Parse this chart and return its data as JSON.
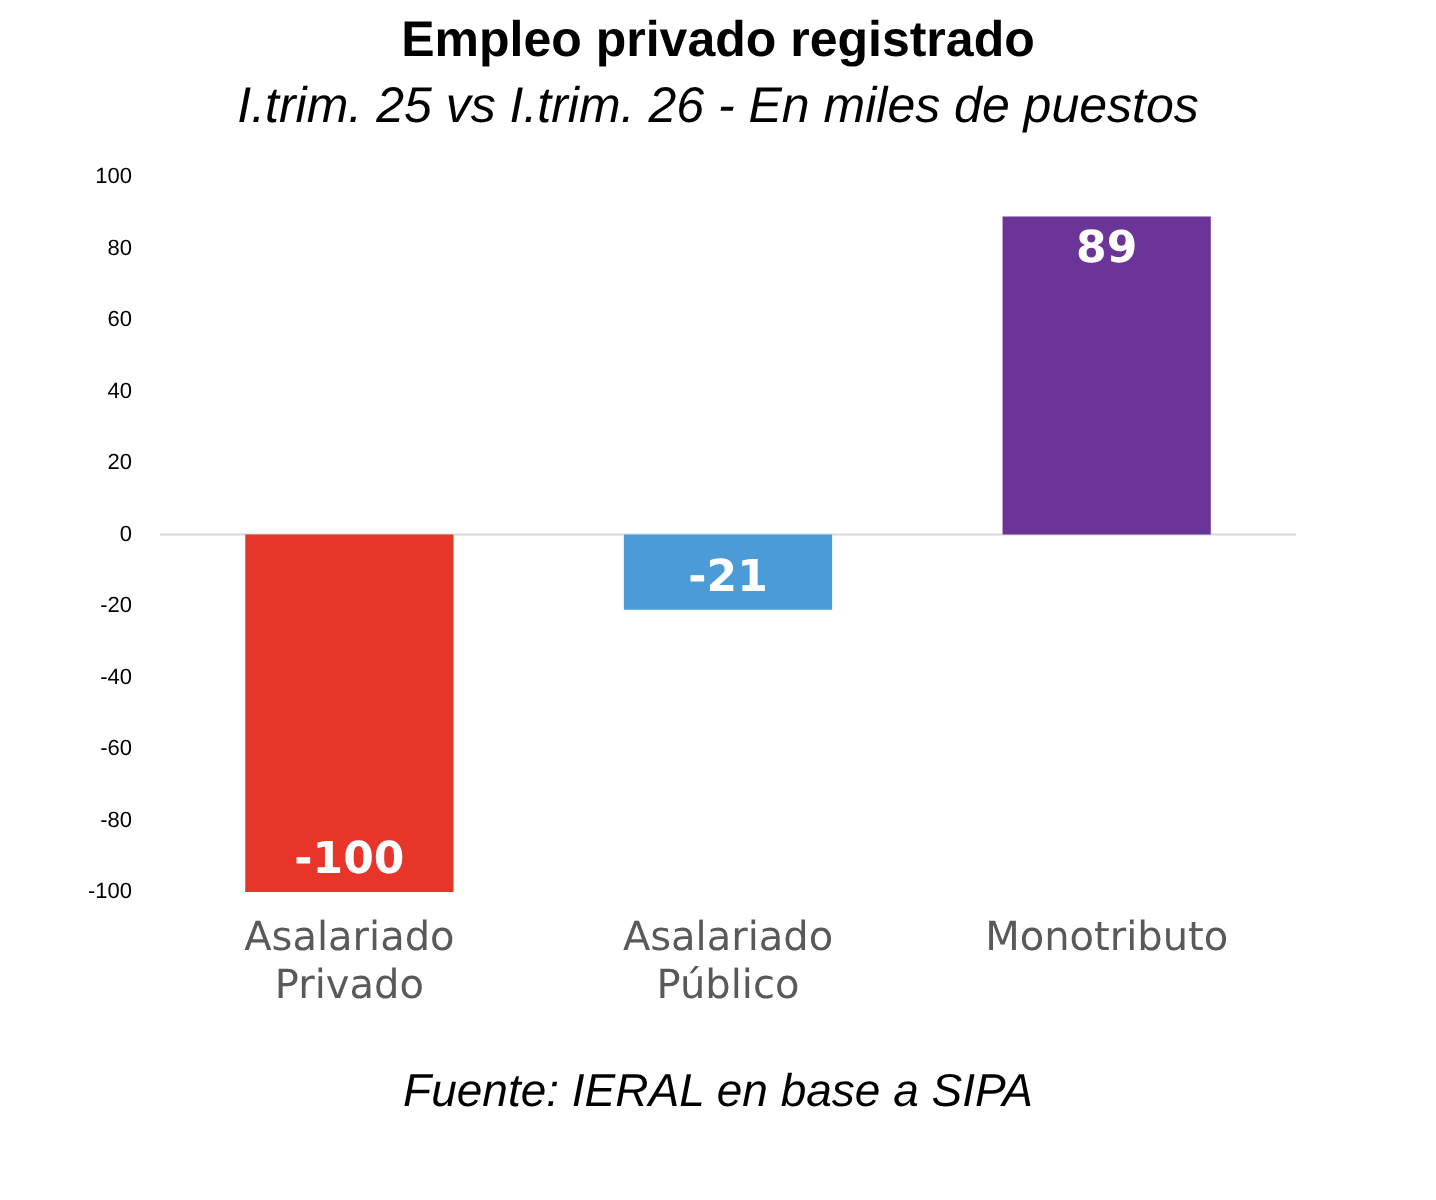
{
  "chart_data": {
    "type": "bar",
    "title": "Empleo privado registrado",
    "subtitle": "I.trim. 25 vs I.trim. 26 - En miles de puestos",
    "categories": [
      "Asalariado Privado",
      "Asalariado Público",
      "Monotributo"
    ],
    "values": [
      -100,
      -21,
      89
    ],
    "colors": [
      "#e8352a",
      "#4a9bd6",
      "#6a3597"
    ],
    "ylim": [
      -100,
      100
    ],
    "yticks": [
      -100,
      -80,
      -60,
      -40,
      -20,
      0,
      20,
      40,
      60,
      80,
      100
    ],
    "grid": false,
    "legend": false,
    "ref_lines": [
      {
        "axis": "y",
        "value": 0,
        "color": "#d9d9d9"
      }
    ],
    "data_labels": true,
    "annotations": [
      "Fuente: IERAL en base a SIPA"
    ]
  }
}
